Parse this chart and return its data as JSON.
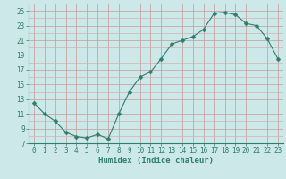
{
  "x": [
    0,
    1,
    2,
    3,
    4,
    5,
    6,
    7,
    8,
    9,
    10,
    11,
    12,
    13,
    14,
    15,
    16,
    17,
    18,
    19,
    20,
    21,
    22,
    23
  ],
  "y": [
    12.5,
    11.0,
    10.0,
    8.5,
    7.9,
    7.7,
    8.2,
    7.6,
    11.0,
    14.0,
    16.0,
    16.7,
    18.5,
    20.5,
    21.0,
    21.5,
    22.5,
    24.7,
    24.8,
    24.5,
    23.3,
    23.0,
    21.2,
    18.5
  ],
  "line_color": "#2e7d6e",
  "marker": "D",
  "marker_size": 2.5,
  "bg_color": "#cce8e8",
  "grid_minor_color": "#d4b0b0",
  "grid_major_color": "#c49898",
  "xlabel": "Humidex (Indice chaleur)",
  "xlim": [
    -0.5,
    23.5
  ],
  "ylim": [
    7,
    26
  ],
  "yticks": [
    7,
    9,
    11,
    13,
    15,
    17,
    19,
    21,
    23,
    25
  ],
  "xticks": [
    0,
    1,
    2,
    3,
    4,
    5,
    6,
    7,
    8,
    9,
    10,
    11,
    12,
    13,
    14,
    15,
    16,
    17,
    18,
    19,
    20,
    21,
    22,
    23
  ],
  "tick_fontsize": 5.5,
  "label_fontsize": 6.5
}
